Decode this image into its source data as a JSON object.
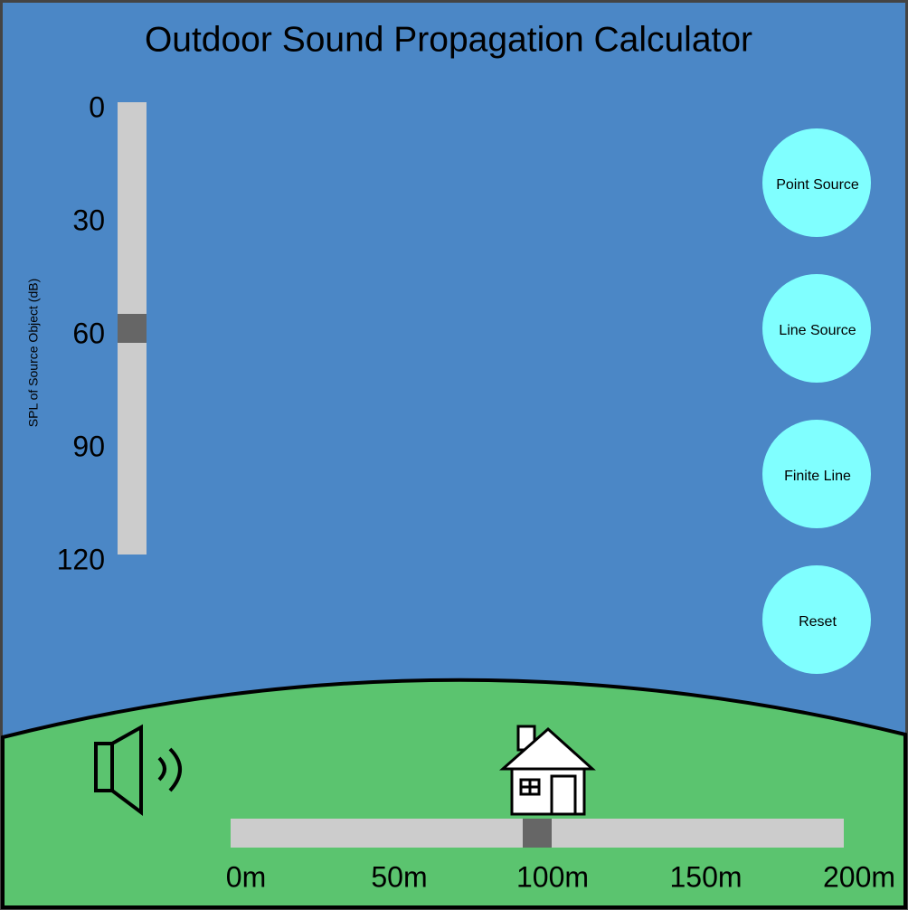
{
  "header": {
    "title": "Outdoor Sound Propagation Calculator"
  },
  "spl_slider": {
    "label": "SPL of Source Object (dB)",
    "ticks": [
      0,
      30,
      60,
      90,
      120
    ],
    "value": 60
  },
  "distance_slider": {
    "ticks": [
      {
        "value": 0,
        "label": "0m"
      },
      {
        "value": 50,
        "label": "50m"
      },
      {
        "value": 100,
        "label": "100m"
      },
      {
        "value": 150,
        "label": "150m"
      },
      {
        "value": 200,
        "label": "200m"
      }
    ],
    "value": 100
  },
  "buttons": [
    "Point Source",
    "Line Source",
    "Finite Line",
    "Reset"
  ]
}
